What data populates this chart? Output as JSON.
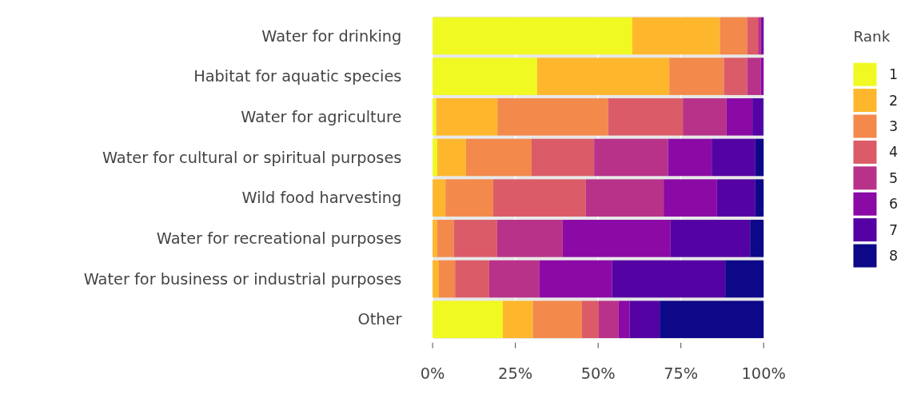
{
  "chart_data": {
    "type": "bar",
    "orientation": "horizontal",
    "stacked": true,
    "categories": [
      "Water for drinking",
      "Habitat for aquatic species",
      "Water for agriculture",
      "Water for cultural or spiritual purposes",
      "Wild food harvesting",
      "Water for recreational purposes",
      "Water for business or industrial purposes",
      "Other"
    ],
    "legend_title": "Rank",
    "legend": "right",
    "grid": "x",
    "xlim": [
      0,
      100
    ],
    "xticks": [
      {
        "value": 0,
        "label": "0%"
      },
      {
        "value": 25,
        "label": "25%"
      },
      {
        "value": 50,
        "label": "50%"
      },
      {
        "value": 75,
        "label": "75%"
      },
      {
        "value": 100,
        "label": "100%"
      }
    ],
    "series": [
      {
        "name": "1",
        "color": "#f0f921",
        "values": [
          60.3,
          31.6,
          1.1,
          1.4,
          0,
          0,
          0,
          21.2
        ]
      },
      {
        "name": "2",
        "color": "#feb72d",
        "values": [
          26.5,
          39.9,
          18.5,
          8.7,
          3.9,
          1.4,
          1.9,
          9.1
        ]
      },
      {
        "name": "3",
        "color": "#f3894b",
        "values": [
          8.2,
          16.5,
          33.4,
          19.8,
          14.4,
          5.0,
          4.9,
          14.8
        ]
      },
      {
        "name": "4",
        "color": "#db5c68",
        "values": [
          3.3,
          7.0,
          22.6,
          18.9,
          28.0,
          13.1,
          10.3,
          5.1
        ]
      },
      {
        "name": "5",
        "color": "#b83289",
        "values": [
          0.9,
          4.1,
          13.2,
          22.3,
          23.5,
          19.8,
          15.2,
          6.0
        ]
      },
      {
        "name": "6",
        "color": "#8b0aa5",
        "values": [
          0.5,
          0.9,
          7.8,
          13.2,
          16.1,
          32.6,
          21.9,
          3.3
        ]
      },
      {
        "name": "7",
        "color": "#5402a3",
        "values": [
          0.3,
          0,
          3.2,
          13.2,
          11.6,
          24.0,
          34.2,
          9.1
        ]
      },
      {
        "name": "8",
        "color": "#0d0887",
        "values": [
          0,
          0,
          0.2,
          2.5,
          2.5,
          4.1,
          11.6,
          31.4
        ]
      }
    ]
  }
}
